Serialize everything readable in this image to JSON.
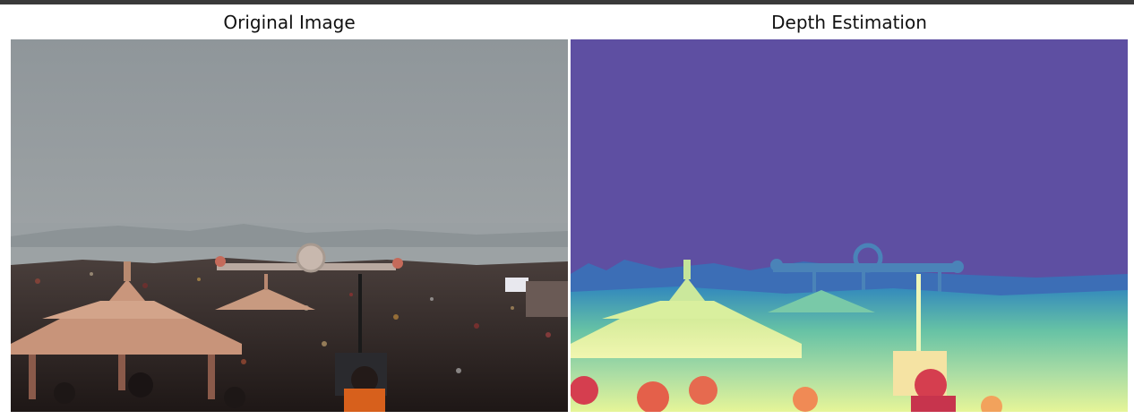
{
  "figure": {
    "panels": [
      {
        "title": "Original Image"
      },
      {
        "title": "Depth Estimation"
      }
    ]
  },
  "colors": {
    "sky_top": "#8f969a",
    "sky_bottom": "#a5a9ab",
    "depth_far": "#5e4fa2",
    "depth_mid": "#3288bd",
    "depth_near": "#e6f598",
    "depth_closest": "#d53e4f"
  }
}
